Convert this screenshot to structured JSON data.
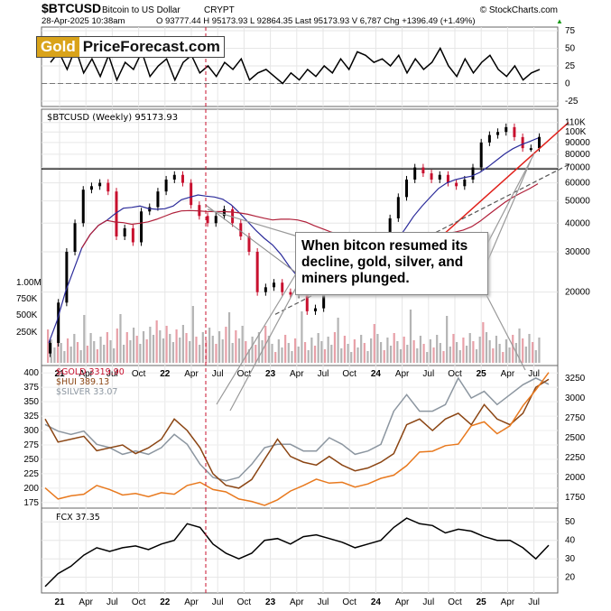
{
  "header": {
    "symbol": "$BTCUSD",
    "name": "Bitcoin to US Dollar",
    "exchange": "CRYPT",
    "brand": "© StockCharts.com",
    "date": "28-Apr-2025 10:38am",
    "ohlc": "O 93777.44  H 95173.93  L 92864.35  Last 95173.93  V 6,787  Chg +1396.49 (+1.49%)",
    "chg_marker": "▲"
  },
  "logo": {
    "gold": "Gold",
    "rest": "PriceForecast.com"
  },
  "callout": {
    "text": "When bitcon resumed its decline, gold, silver, and miners plunged."
  },
  "colors": {
    "btc_up": "#000000",
    "btc_down": "#c8102e",
    "ma50": "#2b2b9a",
    "ma200": "#b0203a",
    "trend_red": "#e0201a",
    "gold": "#c8102e",
    "hui": "#8b4513",
    "silver": "#8c96a0",
    "fcx": "#000000",
    "orange": "#e8791e",
    "volume_red": "#e8a0a8",
    "volume_gray": "#b4b4b4"
  },
  "chart_data": [
    {
      "type": "line",
      "panel": "oscillator",
      "title": "",
      "y_ticks": [
        "75",
        "50",
        "25",
        "0",
        "-25"
      ],
      "series": [
        {
          "values": [
            30,
            45,
            20,
            50,
            15,
            35,
            10,
            40,
            5,
            30,
            20,
            45,
            10,
            25,
            35,
            5,
            30,
            40,
            15,
            25,
            10,
            30,
            20,
            35,
            5,
            15,
            20,
            10,
            0,
            15,
            5,
            20,
            10,
            25,
            15,
            35,
            20,
            45,
            40,
            30,
            35,
            25,
            40,
            15,
            35,
            20,
            30,
            50,
            25,
            10,
            35,
            15,
            30,
            40,
            20,
            10,
            25,
            5,
            15,
            20
          ]
        }
      ]
    },
    {
      "type": "line",
      "panel": "price",
      "title": "$BTCUSD (Weekly) 95173.93",
      "y_ticks": [
        "110K",
        "100K",
        "90000",
        "80000",
        "70000",
        "60000",
        "50000",
        "40000",
        "30000",
        "20000"
      ],
      "vol_ticks": [
        "1.00M",
        "750K",
        "500K",
        "250K"
      ],
      "x_ticks": [
        "21",
        "Apr",
        "Jul",
        "Oct",
        "22",
        "Apr",
        "Jul",
        "Oct",
        "23",
        "Apr",
        "Jul",
        "Oct",
        "24",
        "Apr",
        "Jul",
        "Oct",
        "25",
        "Apr",
        "Jul"
      ],
      "series": [
        {
          "name": "$BTCUSD",
          "values": [
            12000,
            18000,
            30000,
            40000,
            56000,
            58000,
            60000,
            55000,
            35000,
            38000,
            33000,
            45000,
            47000,
            55000,
            62000,
            65000,
            60000,
            48000,
            43000,
            40000,
            43000,
            46000,
            40000,
            35000,
            30000,
            20000,
            21000,
            22000,
            20000,
            19500,
            20000,
            16500,
            17000,
            23000,
            27000,
            29000,
            30000,
            29500,
            26000,
            27000,
            34000,
            42000,
            52000,
            62000,
            70000,
            66000,
            62000,
            65000,
            60000,
            58000,
            62000,
            70000,
            90000,
            97000,
            100000,
            105000,
            95000,
            85000,
            85000,
            95173
          ]
        }
      ]
    },
    {
      "type": "line",
      "panel": "metals",
      "title": "",
      "y_ticks_left": [
        "400",
        "375",
        "350",
        "325",
        "300",
        "275",
        "250",
        "225",
        "200",
        "175"
      ],
      "y_ticks_right": [
        "3250",
        "3000",
        "2750",
        "2500",
        "2250",
        "2000",
        "1750"
      ],
      "series": [
        {
          "name": "$GOLD 3319.90",
          "values": [
            1870,
            1730,
            1770,
            1790,
            1900,
            1850,
            1780,
            1800,
            1760,
            1810,
            1790,
            1900,
            1940,
            1850,
            1820,
            1730,
            1700,
            1650,
            1720,
            1830,
            1900,
            1980,
            1930,
            1940,
            1880,
            1920,
            1990,
            2030,
            2150,
            2320,
            2330,
            2400,
            2420,
            2650,
            2700,
            2550,
            2650,
            2900,
            3100,
            3319
          ]
        },
        {
          "name": "$HUI 389.13",
          "values": [
            320,
            280,
            285,
            290,
            265,
            270,
            275,
            260,
            270,
            285,
            320,
            300,
            270,
            225,
            205,
            200,
            215,
            250,
            285,
            255,
            245,
            240,
            255,
            240,
            230,
            235,
            245,
            260,
            310,
            320,
            300,
            320,
            330,
            310,
            345,
            320,
            310,
            330,
            375,
            389
          ]
        },
        {
          "name": "$SILVER 33.07",
          "values": [
            27,
            26,
            25.5,
            26,
            24,
            23.5,
            22.5,
            23,
            22.5,
            23.5,
            25.5,
            24,
            21,
            19,
            18.5,
            19,
            21,
            23.5,
            24,
            24,
            23,
            23,
            25,
            24,
            22.5,
            23,
            24,
            29,
            31.5,
            29,
            29,
            30,
            34,
            31,
            32,
            30,
            31.5,
            33,
            34,
            33.07
          ]
        }
      ]
    },
    {
      "type": "line",
      "panel": "fcx",
      "title": "FCX 37.35",
      "y_ticks": [
        "50",
        "40",
        "30",
        "20"
      ],
      "x_ticks": [
        "21",
        "Apr",
        "Jul",
        "Oct",
        "22",
        "Apr",
        "Jul",
        "Oct",
        "23",
        "Apr",
        "Jul",
        "Oct",
        "24",
        "Apr",
        "Jul",
        "Oct",
        "25",
        "Apr",
        "Jul"
      ],
      "series": [
        {
          "name": "FCX",
          "values": [
            15,
            22,
            26,
            32,
            36,
            34,
            36,
            37,
            35,
            38,
            40,
            49,
            47,
            38,
            33,
            30,
            33,
            40,
            41,
            38,
            42,
            43,
            41,
            39,
            36,
            38,
            40,
            47,
            52,
            49,
            48,
            44,
            46,
            45,
            42,
            40,
            40,
            36,
            30,
            37.35
          ]
        }
      ]
    }
  ]
}
